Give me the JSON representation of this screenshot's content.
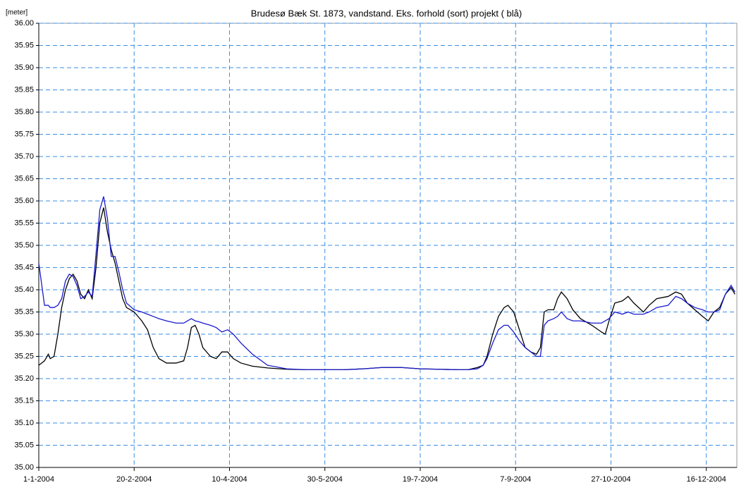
{
  "chart_data": {
    "type": "line",
    "title": "Brudesø Bæk St. 1873, vandstand. Eks. forhold (sort) projekt ( blå)",
    "ylabel": "[meter]",
    "x": [
      "2004-01-01",
      "2004-01-04",
      "2004-01-06",
      "2004-01-07",
      "2004-01-09",
      "2004-01-11",
      "2004-01-13",
      "2004-01-15",
      "2004-01-17",
      "2004-01-19",
      "2004-01-21",
      "2004-01-23",
      "2004-01-25",
      "2004-01-27",
      "2004-01-29",
      "2004-01-31",
      "2004-02-02",
      "2004-02-04",
      "2004-02-06",
      "2004-02-08",
      "2004-02-10",
      "2004-02-12",
      "2004-02-14",
      "2004-02-16",
      "2004-02-20",
      "2004-02-24",
      "2004-02-27",
      "2004-03-01",
      "2004-03-04",
      "2004-03-08",
      "2004-03-13",
      "2004-03-17",
      "2004-03-19",
      "2004-03-21",
      "2004-03-23",
      "2004-03-25",
      "2004-03-27",
      "2004-03-31",
      "2004-04-03",
      "2004-04-06",
      "2004-04-09",
      "2004-04-12",
      "2004-04-16",
      "2004-04-22",
      "2004-04-30",
      "2004-05-10",
      "2004-05-20",
      "2004-05-30",
      "2004-06-09",
      "2004-06-19",
      "2004-06-29",
      "2004-07-09",
      "2004-07-19",
      "2004-07-29",
      "2004-08-08",
      "2004-08-13",
      "2004-08-18",
      "2004-08-21",
      "2004-08-23",
      "2004-08-26",
      "2004-08-29",
      "2004-09-01",
      "2004-09-03",
      "2004-09-06",
      "2004-09-09",
      "2004-09-12",
      "2004-09-15",
      "2004-09-18",
      "2004-09-20",
      "2004-09-22",
      "2004-09-24",
      "2004-09-27",
      "2004-09-29",
      "2004-10-01",
      "2004-10-04",
      "2004-10-07",
      "2004-10-11",
      "2004-10-17",
      "2004-10-22",
      "2004-10-24",
      "2004-10-26",
      "2004-10-29",
      "2004-11-02",
      "2004-11-05",
      "2004-11-08",
      "2004-11-13",
      "2004-11-16",
      "2004-11-20",
      "2004-11-26",
      "2004-11-30",
      "2004-12-03",
      "2004-12-06",
      "2004-12-10",
      "2004-12-14",
      "2004-12-17",
      "2004-12-20",
      "2004-12-23",
      "2004-12-26",
      "2004-12-29",
      "2004-12-31"
    ],
    "series": [
      {
        "color": "#000000",
        "values": [
          35.23,
          35.24,
          35.255,
          35.245,
          35.25,
          35.3,
          35.36,
          35.4,
          35.425,
          35.435,
          35.42,
          35.39,
          35.38,
          35.4,
          35.38,
          35.45,
          35.55,
          35.585,
          35.53,
          35.49,
          35.46,
          35.42,
          35.38,
          35.36,
          35.35,
          35.33,
          35.31,
          35.27,
          35.245,
          35.235,
          35.235,
          35.24,
          35.27,
          35.315,
          35.32,
          35.3,
          35.27,
          35.25,
          35.245,
          35.26,
          35.26,
          35.245,
          35.235,
          35.228,
          35.224,
          35.221,
          35.22,
          35.22,
          35.22,
          35.222,
          35.225,
          35.225,
          35.222,
          35.221,
          35.22,
          35.22,
          35.225,
          35.23,
          35.25,
          35.3,
          35.34,
          35.36,
          35.365,
          35.35,
          35.31,
          35.27,
          35.26,
          35.255,
          35.27,
          35.35,
          35.355,
          35.355,
          35.38,
          35.395,
          35.38,
          35.355,
          35.335,
          35.32,
          35.305,
          35.3,
          35.33,
          35.37,
          35.375,
          35.385,
          35.37,
          35.35,
          35.365,
          35.38,
          35.385,
          35.395,
          35.39,
          35.37,
          35.355,
          35.34,
          35.33,
          35.35,
          35.36,
          35.39,
          35.405,
          35.39
        ]
      },
      {
        "color": "#1a1acc",
        "values": [
          35.46,
          35.365,
          35.365,
          35.36,
          35.36,
          35.365,
          35.38,
          35.42,
          35.435,
          35.43,
          35.41,
          35.38,
          35.385,
          35.395,
          35.385,
          35.48,
          35.58,
          35.61,
          35.56,
          35.475,
          35.475,
          35.44,
          35.4,
          35.37,
          35.355,
          35.35,
          35.345,
          35.34,
          35.335,
          35.33,
          35.325,
          35.325,
          35.33,
          35.335,
          35.33,
          35.328,
          35.325,
          35.32,
          35.315,
          35.305,
          35.31,
          35.3,
          35.28,
          35.255,
          35.23,
          35.222,
          35.22,
          35.22,
          35.22,
          35.222,
          35.225,
          35.225,
          35.222,
          35.221,
          35.22,
          35.22,
          35.222,
          35.23,
          35.245,
          35.28,
          35.31,
          35.32,
          35.32,
          35.305,
          35.285,
          35.27,
          35.26,
          35.25,
          35.25,
          35.32,
          35.33,
          35.335,
          35.34,
          35.35,
          35.335,
          35.33,
          35.33,
          35.325,
          35.325,
          35.33,
          35.335,
          35.35,
          35.345,
          35.35,
          35.345,
          35.345,
          35.35,
          35.36,
          35.365,
          35.385,
          35.38,
          35.37,
          35.36,
          35.355,
          35.35,
          35.35,
          35.355,
          35.39,
          35.41,
          35.395
        ]
      }
    ],
    "xlim": [
      "2004-01-01",
      "2005-01-01"
    ],
    "xticks": [
      {
        "value": "2004-01-01",
        "label": "1-1-2004"
      },
      {
        "value": "2004-02-20",
        "label": "20-2-2004"
      },
      {
        "value": "2004-04-10",
        "label": "10-4-2004"
      },
      {
        "value": "2004-05-30",
        "label": "30-5-2004"
      },
      {
        "value": "2004-07-19",
        "label": "19-7-2004"
      },
      {
        "value": "2004-09-07",
        "label": "7-9-2004"
      },
      {
        "value": "2004-10-27",
        "label": "27-10-2004"
      },
      {
        "value": "2004-12-16",
        "label": "16-12-2004"
      }
    ],
    "ylim": [
      35,
      36
    ],
    "yticks": [
      {
        "value": 35,
        "label": "35.00"
      },
      35.05,
      {
        "value": 35.1,
        "label": "35.10"
      },
      35.15,
      {
        "value": 35.2,
        "label": "35.20"
      },
      35.25,
      {
        "value": 35.3,
        "label": "35.30"
      },
      35.35,
      {
        "value": 35.4,
        "label": "35.40"
      },
      35.45,
      {
        "value": 35.5,
        "label": "35.50"
      },
      35.55,
      {
        "value": 35.6,
        "label": "35.60"
      },
      35.65,
      {
        "value": 35.7,
        "label": "35.70"
      },
      35.75,
      {
        "value": 35.8,
        "label": "35.80"
      },
      35.85,
      {
        "value": 35.9,
        "label": "35.90"
      },
      35.95,
      {
        "value": 36,
        "label": "36.00"
      }
    ],
    "grid": true,
    "grid_color": "#3a8ee6"
  }
}
